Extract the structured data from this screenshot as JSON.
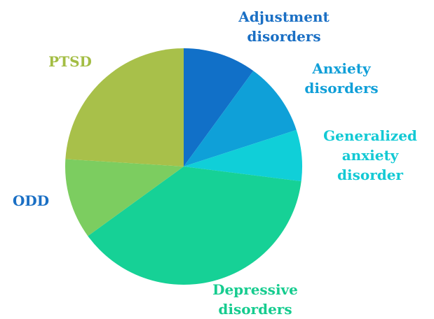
{
  "chart_data": {
    "type": "pie",
    "categories": [
      "Adjustment disorders",
      "Anxiety disorders",
      "Generalized anxiety disorder",
      "Depressive disorders",
      "ODD",
      "PTSD"
    ],
    "values": [
      10,
      10,
      7,
      38,
      11,
      24
    ],
    "colors": [
      "#1170c8",
      "#0fa0d8",
      "#10cfd8",
      "#16d196",
      "#7ccd60",
      "#a8c04a"
    ],
    "label_colors": [
      "#1a6fc4",
      "#109fd8",
      "#13c9d4",
      "#16cc8f",
      "#1a6fc4",
      "#a3bd44"
    ],
    "start_angle": 0,
    "direction": "clockwise"
  }
}
